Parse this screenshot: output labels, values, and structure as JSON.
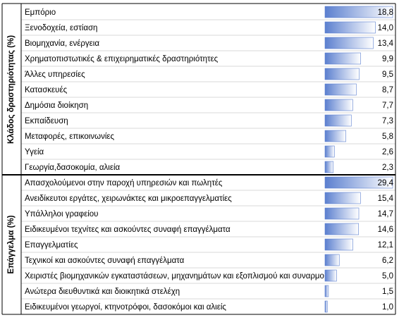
{
  "chart_data": {
    "type": "table-bars",
    "sections": [
      {
        "label": "Κλάδος δραστηριότητας (%)",
        "categories": [
          "Εμπόριο",
          "Ξενοδοχεία, εστίαση",
          "Βιομηχανία, ενέργεια",
          "Χρηματοπιστωτικές & επιχειρηματικές δραστηριότητες",
          "Άλλες υπηρεσίες",
          "Κατασκευές",
          "Δημόσια διοίκηση",
          "Εκπαίδευση",
          "Μεταφορές, επικοινωνίες",
          "Υγεία",
          "Γεωργία,δασοκομία, αλιεία"
        ],
        "values": [
          18.8,
          14.0,
          13.4,
          9.9,
          9.5,
          8.7,
          7.7,
          7.3,
          5.8,
          2.6,
          2.3
        ],
        "value_labels": [
          "18,8",
          "14,0",
          "13,4",
          "9,9",
          "9,5",
          "8,7",
          "7,7",
          "7,3",
          "5,8",
          "2,6",
          "2,3"
        ]
      },
      {
        "label": "Επάγγελμα (%)",
        "categories": [
          "Απασχολούμενοι στην παροχή υπηρεσιών και πωλητές",
          "Ανειδίκευτοι εργάτες, χειρωνάκτες και μικροεπαγγελματίες",
          "Υπάλληλοι γραφείου",
          "Ειδικευμένοι τεχνίτες και ασκούντες συναφή επαγγέλματα",
          "Επαγγελματίες",
          "Τεχνικοί και ασκούντες συναφή επαγγέλματα",
          "Χειριστές βιομηχανικών εγκαταστάσεων, μηχανημάτων και εξοπλισμού και συναρμολογητές",
          "Ανώτερα διευθυντικά και διοικητικά στελέχη",
          "Ειδικευμένοι γεωργοί, κτηνοτρόφοι, δασοκόμοι και αλιείς"
        ],
        "values": [
          29.4,
          15.4,
          14.7,
          14.6,
          12.1,
          6.2,
          5.0,
          1.5,
          1.0
        ],
        "value_labels": [
          "29,4",
          "15,4",
          "14,7",
          "14,6",
          "12,1",
          "6,2",
          "5,0",
          "1,5",
          "1,0"
        ]
      }
    ],
    "bar_color": "#5b7fcf"
  }
}
